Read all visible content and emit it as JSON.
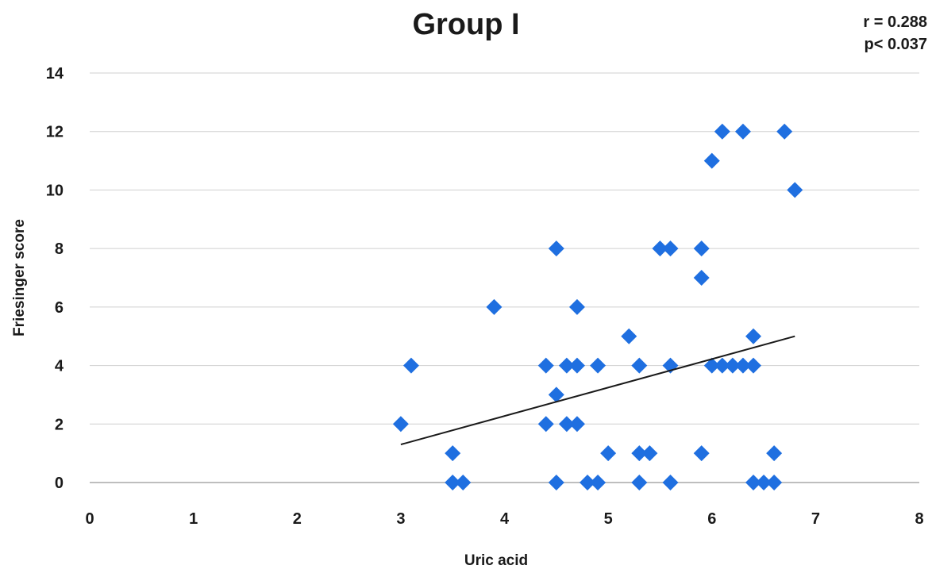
{
  "chart_data": {
    "type": "scatter",
    "title": "Group I",
    "annotations": [
      "r = 0.288",
      "p< 0.037"
    ],
    "xlabel": "Uric acid",
    "ylabel": "Friesinger score",
    "xlim": [
      0,
      8
    ],
    "ylim": [
      0,
      14
    ],
    "x_ticks": [
      "0",
      "1",
      "2",
      "3",
      "4",
      "5",
      "6",
      "7",
      "8"
    ],
    "y_ticks": [
      "0",
      "2",
      "4",
      "6",
      "8",
      "10",
      "12",
      "14"
    ],
    "grid": true,
    "legend": "none",
    "marker_color": "#1f6fe0",
    "trendline": {
      "x": [
        3.0,
        6.8
      ],
      "y": [
        1.3,
        5.0
      ],
      "color": "#1a1a1a"
    },
    "points": [
      {
        "x": 3.0,
        "y": 2
      },
      {
        "x": 3.1,
        "y": 4
      },
      {
        "x": 3.5,
        "y": 1
      },
      {
        "x": 3.5,
        "y": 0
      },
      {
        "x": 3.6,
        "y": 0
      },
      {
        "x": 3.9,
        "y": 6
      },
      {
        "x": 4.4,
        "y": 4
      },
      {
        "x": 4.4,
        "y": 2
      },
      {
        "x": 4.5,
        "y": 8
      },
      {
        "x": 4.5,
        "y": 3
      },
      {
        "x": 4.5,
        "y": 0
      },
      {
        "x": 4.6,
        "y": 4
      },
      {
        "x": 4.6,
        "y": 2
      },
      {
        "x": 4.7,
        "y": 6
      },
      {
        "x": 4.7,
        "y": 4
      },
      {
        "x": 4.7,
        "y": 2
      },
      {
        "x": 4.8,
        "y": 0
      },
      {
        "x": 4.9,
        "y": 4
      },
      {
        "x": 4.9,
        "y": 0
      },
      {
        "x": 5.0,
        "y": 1
      },
      {
        "x": 5.2,
        "y": 5
      },
      {
        "x": 5.3,
        "y": 4
      },
      {
        "x": 5.3,
        "y": 1
      },
      {
        "x": 5.3,
        "y": 0
      },
      {
        "x": 5.4,
        "y": 1
      },
      {
        "x": 5.5,
        "y": 8
      },
      {
        "x": 5.6,
        "y": 8
      },
      {
        "x": 5.6,
        "y": 4
      },
      {
        "x": 5.6,
        "y": 0
      },
      {
        "x": 5.9,
        "y": 8
      },
      {
        "x": 5.9,
        "y": 7
      },
      {
        "x": 5.9,
        "y": 1
      },
      {
        "x": 6.0,
        "y": 11
      },
      {
        "x": 6.0,
        "y": 4
      },
      {
        "x": 6.1,
        "y": 12
      },
      {
        "x": 6.1,
        "y": 4
      },
      {
        "x": 6.2,
        "y": 4
      },
      {
        "x": 6.3,
        "y": 12
      },
      {
        "x": 6.3,
        "y": 4
      },
      {
        "x": 6.4,
        "y": 5
      },
      {
        "x": 6.4,
        "y": 4
      },
      {
        "x": 6.4,
        "y": 0
      },
      {
        "x": 6.5,
        "y": 0
      },
      {
        "x": 6.6,
        "y": 1
      },
      {
        "x": 6.6,
        "y": 0
      },
      {
        "x": 6.7,
        "y": 12
      },
      {
        "x": 6.8,
        "y": 10
      }
    ]
  }
}
